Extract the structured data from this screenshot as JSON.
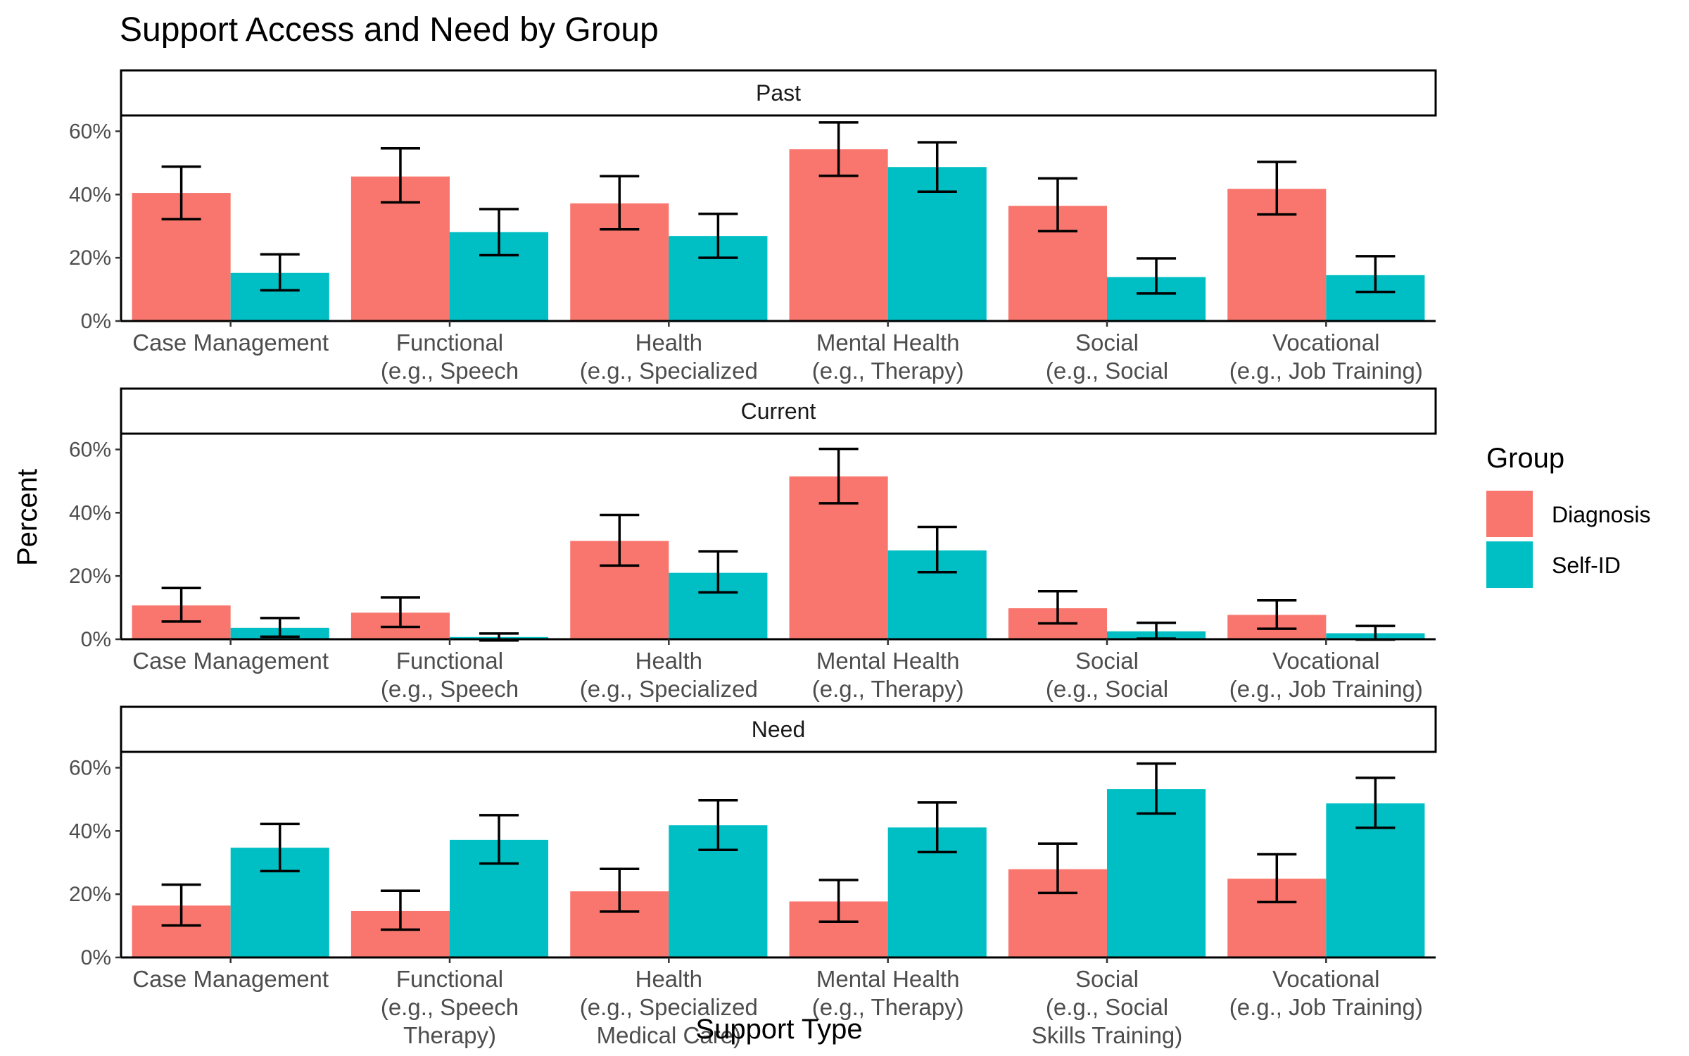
{
  "chart_data": {
    "type": "bar",
    "title": "Support Access and Need by Group",
    "xlabel": "Support Type",
    "ylabel": "Percent",
    "ylim": [
      0,
      0.65
    ],
    "yticks": [
      0,
      0.2,
      0.4,
      0.6
    ],
    "ytick_labels": [
      "0%",
      "20%",
      "40%",
      "60%"
    ],
    "categories": [
      [
        "Case Management"
      ],
      [
        "Functional",
        "(e.g., Speech",
        "Therapy)"
      ],
      [
        "Health",
        "(e.g., Specialized",
        "Medical Care)"
      ],
      [
        "Mental Health",
        "(e.g., Therapy)"
      ],
      [
        "Social",
        "(e.g., Social",
        "Skills Training)"
      ],
      [
        "Vocational",
        "(e.g., Job Training)"
      ]
    ],
    "legend": {
      "title": "Group",
      "position": "right",
      "entries": [
        {
          "name": "Diagnosis",
          "color": "#F8766D"
        },
        {
          "name": "Self-ID",
          "color": "#00BFC4"
        }
      ]
    },
    "grid": false,
    "panels": [
      {
        "strip": "Past",
        "series": [
          {
            "name": "Diagnosis",
            "color": "#F8766D",
            "values": [
              0.405,
              0.457,
              0.372,
              0.543,
              0.364,
              0.418
            ],
            "lower": [
              0.322,
              0.375,
              0.29,
              0.459,
              0.284,
              0.337
            ],
            "upper": [
              0.488,
              0.546,
              0.458,
              0.628,
              0.451,
              0.503
            ]
          },
          {
            "name": "Self-ID",
            "color": "#00BFC4",
            "values": [
              0.152,
              0.281,
              0.269,
              0.487,
              0.139,
              0.145
            ],
            "lower": [
              0.097,
              0.208,
              0.2,
              0.409,
              0.087,
              0.092
            ],
            "upper": [
              0.211,
              0.354,
              0.339,
              0.565,
              0.198,
              0.205
            ]
          }
        ]
      },
      {
        "strip": "Current",
        "series": [
          {
            "name": "Diagnosis",
            "color": "#F8766D",
            "values": [
              0.107,
              0.084,
              0.311,
              0.515,
              0.098,
              0.077
            ],
            "lower": [
              0.056,
              0.039,
              0.233,
              0.43,
              0.05,
              0.033
            ],
            "upper": [
              0.162,
              0.132,
              0.393,
              0.602,
              0.152,
              0.123
            ]
          },
          {
            "name": "Self-ID",
            "color": "#00BFC4",
            "values": [
              0.036,
              0.007,
              0.21,
              0.281,
              0.025,
              0.019
            ],
            "lower": [
              0.008,
              -0.004,
              0.148,
              0.212,
              0.002,
              -0.001
            ],
            "upper": [
              0.067,
              0.018,
              0.278,
              0.355,
              0.052,
              0.042
            ]
          }
        ]
      },
      {
        "strip": "Need",
        "series": [
          {
            "name": "Diagnosis",
            "color": "#F8766D",
            "values": [
              0.164,
              0.147,
              0.209,
              0.177,
              0.279,
              0.249
            ],
            "lower": [
              0.101,
              0.088,
              0.145,
              0.113,
              0.204,
              0.175
            ],
            "upper": [
              0.23,
              0.211,
              0.28,
              0.245,
              0.36,
              0.326
            ]
          },
          {
            "name": "Self-ID",
            "color": "#00BFC4",
            "values": [
              0.347,
              0.372,
              0.418,
              0.411,
              0.532,
              0.487
            ],
            "lower": [
              0.273,
              0.297,
              0.34,
              0.333,
              0.455,
              0.41
            ],
            "upper": [
              0.422,
              0.45,
              0.497,
              0.49,
              0.613,
              0.568
            ]
          }
        ]
      }
    ]
  }
}
